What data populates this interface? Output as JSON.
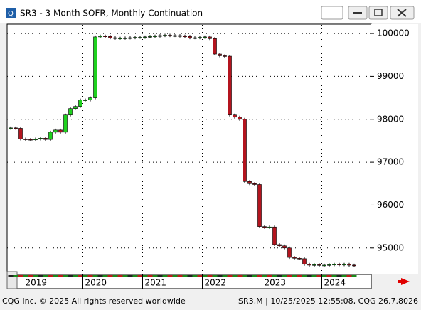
{
  "window": {
    "title": "SR3 - 3 Month SOFR, Monthly Continuation"
  },
  "footer": {
    "left": "CQG Inc. © 2025 All rights reserved worldwide",
    "right": "SR3,M | 10/25/2025 12:55:08, CQG 26.7.8026"
  },
  "chart_data": {
    "type": "candlestick",
    "categories": [
      null,
      null,
      null,
      "2019",
      null,
      null,
      null,
      null,
      null,
      null,
      null,
      null,
      null,
      null,
      null,
      "2020",
      null,
      null,
      null,
      null,
      null,
      null,
      null,
      null,
      null,
      null,
      null,
      "2021",
      null,
      null,
      null,
      null,
      null,
      null,
      null,
      null,
      null,
      null,
      null,
      "2022",
      null,
      null,
      null,
      null,
      null,
      null,
      null,
      null,
      null,
      null,
      null,
      "2023",
      null,
      null,
      null,
      null,
      null,
      null,
      null,
      null,
      null,
      null,
      null,
      "2024",
      null,
      null,
      null,
      null,
      null,
      null
    ],
    "open": [
      97790,
      97800,
      97790,
      97540,
      97530,
      97520,
      97540,
      97560,
      97530,
      97700,
      97750,
      97700,
      98100,
      98250,
      98300,
      98450,
      98450,
      98500,
      99920,
      99940,
      99930,
      99900,
      99890,
      99890,
      99895,
      99900,
      99910,
      99910,
      99920,
      99930,
      99940,
      99950,
      99960,
      99950,
      99950,
      99940,
      99930,
      99900,
      99900,
      99910,
      99920,
      99880,
      99520,
      99480,
      99470,
      98100,
      98050,
      98000,
      96550,
      96500,
      96480,
      95500,
      95480,
      95490,
      95080,
      95050,
      95000,
      94780,
      94760,
      94750,
      94620,
      94600,
      94610,
      94600,
      94600,
      94610,
      94620,
      94610,
      94620,
      94600
    ],
    "close": [
      97800,
      97790,
      97540,
      97530,
      97520,
      97540,
      97560,
      97530,
      97700,
      97750,
      97700,
      98100,
      98250,
      98300,
      98450,
      98450,
      98500,
      99920,
      99940,
      99930,
      99900,
      99890,
      99890,
      99895,
      99900,
      99910,
      99910,
      99920,
      99930,
      99940,
      99950,
      99960,
      99950,
      99950,
      99940,
      99930,
      99900,
      99900,
      99910,
      99920,
      99880,
      99520,
      99480,
      99470,
      98100,
      98050,
      98000,
      96550,
      96500,
      96480,
      95500,
      95480,
      95490,
      95080,
      95050,
      95000,
      94780,
      94760,
      94750,
      94620,
      94600,
      94610,
      94600,
      94600,
      94610,
      94620,
      94610,
      94620,
      94600,
      94590
    ],
    "up_color": "#1ed21e",
    "down_color": "#b4141e",
    "ylim": [
      94400,
      100200
    ],
    "yticks": [
      95000,
      96000,
      97000,
      98000,
      99000,
      100000
    ],
    "grid": true
  }
}
